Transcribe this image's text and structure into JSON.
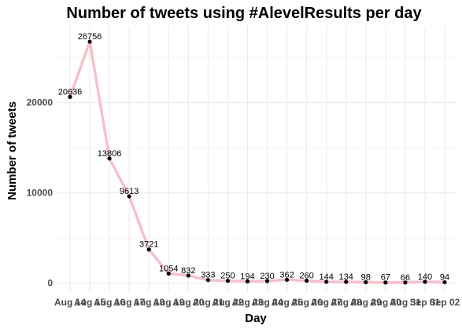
{
  "chart_data": {
    "type": "line",
    "title": "Number of tweets using #AlevelResults per day",
    "xlabel": "Day",
    "ylabel": "Number of tweets",
    "categories": [
      "Aug 14",
      "Aug 15",
      "Aug 16",
      "Aug 17",
      "Aug 18",
      "Aug 19",
      "Aug 20",
      "Aug 21",
      "Aug 22",
      "Aug 23",
      "Aug 24",
      "Aug 25",
      "Aug 26",
      "Aug 27",
      "Aug 28",
      "Aug 29",
      "Aug 30",
      "Aug 31",
      "Sep 01",
      "Sep 02"
    ],
    "values": [
      20636,
      26756,
      13806,
      9613,
      3721,
      1054,
      832,
      333,
      250,
      194,
      230,
      362,
      260,
      144,
      134,
      98,
      67,
      66,
      140,
      94
    ],
    "yticks": [
      0,
      10000,
      20000
    ],
    "ylim": [
      -1000,
      28500
    ],
    "grid": true,
    "legend": "none",
    "colors": {
      "line": "#f6c0cb",
      "point": "#000000",
      "grid": "#ebebeb"
    }
  }
}
